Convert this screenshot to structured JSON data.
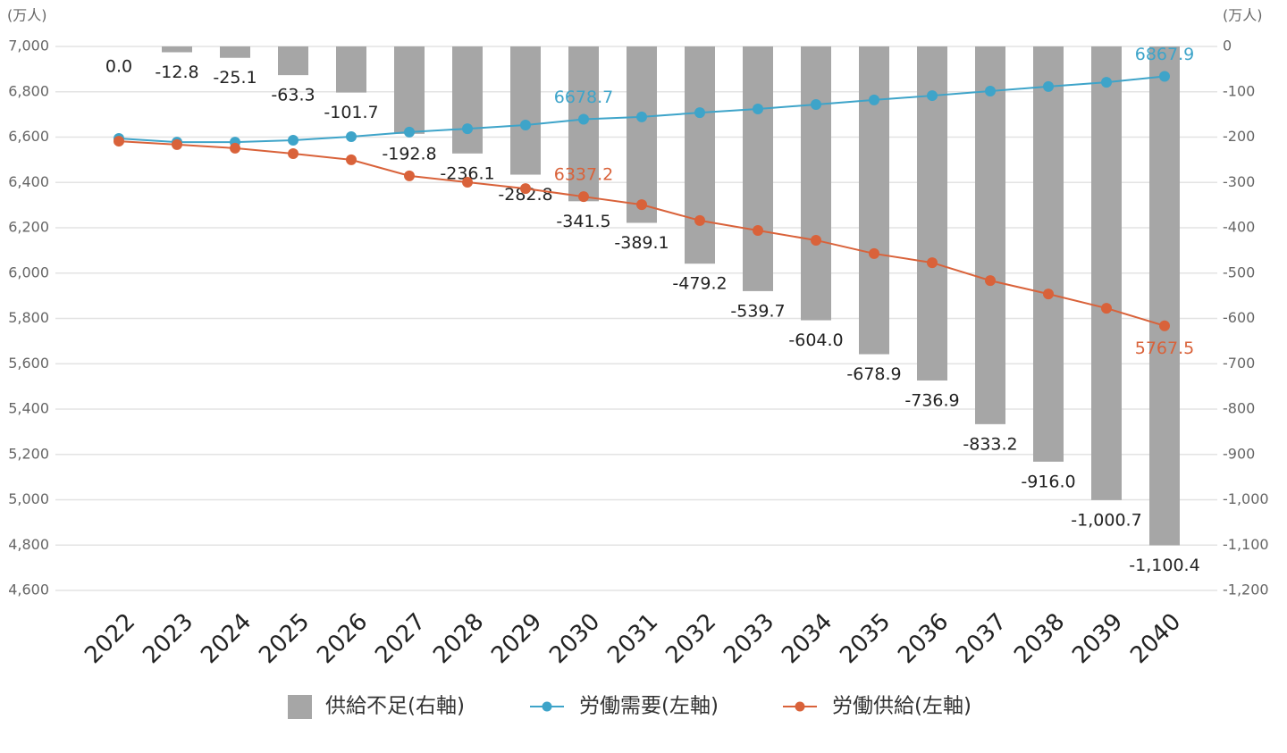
{
  "chart_data": {
    "type": "bar-line",
    "y_label": "(万人)",
    "y2_label": "(万人)",
    "categories": [
      "2022",
      "2023",
      "2024",
      "2025",
      "2026",
      "2027",
      "2028",
      "2029",
      "2030",
      "2031",
      "2032",
      "2033",
      "2034",
      "2035",
      "2036",
      "2037",
      "2038",
      "2039",
      "2040"
    ],
    "ylim": [
      4600,
      7000
    ],
    "yticks": [
      {
        "value": 4600,
        "label": "4,600"
      },
      {
        "value": 4800,
        "label": "4,800"
      },
      {
        "value": 5000,
        "label": "5,000"
      },
      {
        "value": 5200,
        "label": "5,200"
      },
      {
        "value": 5400,
        "label": "5,400"
      },
      {
        "value": 5600,
        "label": "5,600"
      },
      {
        "value": 5800,
        "label": "5,800"
      },
      {
        "value": 6000,
        "label": "6,000"
      },
      {
        "value": 6200,
        "label": "6,200"
      },
      {
        "value": 6400,
        "label": "6,400"
      },
      {
        "value": 6600,
        "label": "6,600"
      },
      {
        "value": 6800,
        "label": "6,800"
      },
      {
        "value": 7000,
        "label": "7,000"
      }
    ],
    "y2lim": [
      -1200,
      0
    ],
    "y2ticks": [
      {
        "value": -1200,
        "label": "-1,200"
      },
      {
        "value": -1100,
        "label": "-1,100"
      },
      {
        "value": -1000,
        "label": "-1,000"
      },
      -900,
      -800,
      -700,
      -600,
      -500,
      -400,
      -300,
      -200,
      -100,
      0
    ],
    "grid": true,
    "series": [
      {
        "name": "供給不足(右軸)",
        "type": "bar",
        "axis": "y2",
        "color": "#a6a6a6",
        "values": [
          0.0,
          -12.8,
          -25.1,
          -63.3,
          -101.7,
          -192.8,
          -236.1,
          -282.8,
          -341.5,
          -389.1,
          -479.2,
          -539.7,
          -604.0,
          -678.9,
          -736.9,
          -833.2,
          -916.0,
          -1000.7,
          -1100.4
        ],
        "value_labels": [
          "0.0",
          "-12.8",
          "-25.1",
          "-63.3",
          "-101.7",
          "-192.8",
          "-236.1",
          "-282.8",
          "-341.5",
          "-389.1",
          "-479.2",
          "-539.7",
          "-604.0",
          "-678.9",
          "-736.9",
          "-833.2",
          "-916.0",
          "-1,000.7",
          "-1,100.4"
        ]
      },
      {
        "name": "労働需要(左軸)",
        "type": "line",
        "color": "#3ea4c9",
        "values": [
          6594,
          6578,
          6578,
          6586,
          6602,
          6622,
          6637,
          6653,
          6678.7,
          6689,
          6708,
          6724,
          6744,
          6764,
          6783,
          6803,
          6823,
          6842,
          6867.9
        ],
        "value_labels": [
          null,
          null,
          null,
          null,
          null,
          null,
          null,
          null,
          "6678.7",
          null,
          null,
          null,
          null,
          null,
          null,
          null,
          null,
          null,
          "6867.9"
        ]
      },
      {
        "name": "労働供給(左軸)",
        "type": "line",
        "color": "#d9623a",
        "values": [
          6582,
          6567,
          6551,
          6527,
          6500,
          6429,
          6401,
          6373,
          6337.2,
          6302,
          6232,
          6188,
          6145,
          6086,
          6046,
          5967,
          5908,
          5845,
          5767.5
        ],
        "value_labels": [
          null,
          null,
          null,
          null,
          null,
          null,
          null,
          null,
          "6337.2",
          null,
          null,
          null,
          null,
          null,
          null,
          null,
          null,
          null,
          "5767.5"
        ]
      }
    ]
  }
}
